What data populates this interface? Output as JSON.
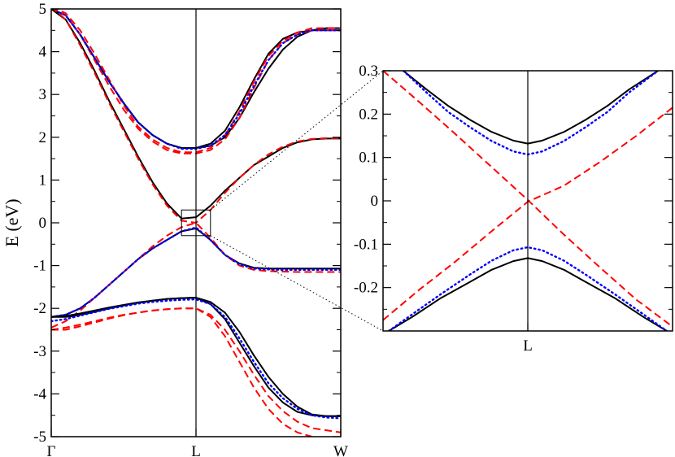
{
  "chart_data": [
    {
      "type": "line",
      "ylabel": "E (eV)",
      "ylim": [
        -5,
        5
      ],
      "xlim": [
        0,
        1
      ],
      "x_ticks": [
        {
          "x": 0,
          "label": "Γ"
        },
        {
          "x": 0.5,
          "label": "L"
        },
        {
          "x": 1,
          "label": "W"
        }
      ],
      "y_ticks": [
        5,
        4,
        3,
        2,
        1,
        0,
        -1,
        -2,
        -3,
        -4,
        -5
      ],
      "y_tick_labels": [
        "5",
        "4",
        "3",
        "2",
        "1",
        "0",
        "-1",
        "-2",
        "-3",
        "-4",
        "-5"
      ],
      "vline_x": 0.5,
      "inset_box": {
        "xmin": 0.45,
        "xmax": 0.55,
        "ymin": -0.3,
        "ymax": 0.3
      },
      "series": [
        {
          "color": "#000000",
          "style": "solid",
          "x": [
            0,
            0.05,
            0.1,
            0.15,
            0.2,
            0.25,
            0.3,
            0.35,
            0.4,
            0.45,
            0.5,
            0.55,
            0.6,
            0.65,
            0.7,
            0.75,
            0.8,
            0.85,
            0.9,
            0.95,
            1
          ],
          "y": [
            5,
            4.85,
            4.4,
            3.85,
            3.3,
            2.8,
            2.35,
            2.05,
            1.85,
            1.75,
            1.75,
            1.8,
            2,
            2.45,
            3.05,
            3.6,
            4.05,
            4.35,
            4.5,
            4.55,
            4.55
          ]
        },
        {
          "color": "#000000",
          "style": "solid",
          "x": [
            0,
            0.05,
            0.1,
            0.15,
            0.2,
            0.25,
            0.3,
            0.35,
            0.4,
            0.45,
            0.5,
            0.55,
            0.6,
            0.65,
            0.7,
            0.75,
            0.8,
            0.85,
            0.9,
            0.95,
            1
          ],
          "y": [
            5,
            4.85,
            4.4,
            3.85,
            3.3,
            2.8,
            2.35,
            2.05,
            1.85,
            1.75,
            1.75,
            1.85,
            2.15,
            2.7,
            3.35,
            3.95,
            4.3,
            4.45,
            4.5,
            4.5,
            4.5
          ]
        },
        {
          "color": "#ff0000",
          "style": "dashed",
          "x": [
            0,
            0.05,
            0.1,
            0.15,
            0.2,
            0.25,
            0.3,
            0.35,
            0.4,
            0.45,
            0.5,
            0.55,
            0.6,
            0.65,
            0.7,
            0.75,
            0.8,
            0.85,
            0.9,
            0.95,
            1
          ],
          "y": [
            5.05,
            4.9,
            4.5,
            3.95,
            3.35,
            2.75,
            2.25,
            1.95,
            1.75,
            1.65,
            1.65,
            1.75,
            2.05,
            2.6,
            3.3,
            3.9,
            4.25,
            4.45,
            4.55,
            4.55,
            4.55
          ]
        },
        {
          "color": "#ff0000",
          "style": "dashed",
          "x": [
            0,
            0.05,
            0.1,
            0.15,
            0.2,
            0.25,
            0.3,
            0.35,
            0.4,
            0.45,
            0.5,
            0.55,
            0.6,
            0.65,
            0.7,
            0.75,
            0.8,
            0.85,
            0.9,
            0.95,
            1
          ],
          "y": [
            5.05,
            4.85,
            4.4,
            3.8,
            3.2,
            2.65,
            2.2,
            1.9,
            1.7,
            1.62,
            1.62,
            1.7,
            1.95,
            2.45,
            3.15,
            3.8,
            4.2,
            4.4,
            4.5,
            4.5,
            4.5
          ]
        },
        {
          "color": "#0000ff",
          "style": "dotted",
          "x": [
            0,
            0.05,
            0.1,
            0.15,
            0.2,
            0.25,
            0.3,
            0.35,
            0.4,
            0.45,
            0.5,
            0.55,
            0.6,
            0.65,
            0.7,
            0.75,
            0.8,
            0.85,
            0.9,
            0.95,
            1
          ],
          "y": [
            5,
            4.85,
            4.4,
            3.85,
            3.3,
            2.8,
            2.35,
            2.05,
            1.85,
            1.73,
            1.73,
            1.8,
            2.05,
            2.55,
            3.2,
            3.8,
            4.2,
            4.4,
            4.5,
            4.5,
            4.5
          ]
        },
        {
          "color": "#000000",
          "style": "solid",
          "x": [
            0,
            0.05,
            0.1,
            0.15,
            0.2,
            0.25,
            0.3,
            0.35,
            0.4,
            0.45,
            0.5,
            0.55,
            0.6,
            0.65,
            0.7,
            0.75,
            0.8,
            0.85,
            0.9,
            0.95,
            1
          ],
          "y": [
            -2.2,
            -2.15,
            -2,
            -1.75,
            -1.45,
            -1.15,
            -0.85,
            -0.6,
            -0.4,
            -0.2,
            -0.13,
            -0.4,
            -0.75,
            -0.95,
            -1.05,
            -1.07,
            -1.07,
            -1.07,
            -1.07,
            -1.07,
            -1.07
          ]
        },
        {
          "color": "#000000",
          "style": "solid",
          "x": [
            0,
            0.05,
            0.1,
            0.15,
            0.2,
            0.25,
            0.3,
            0.35,
            0.4,
            0.45,
            0.5,
            0.55,
            0.6,
            0.65,
            0.7,
            0.75,
            0.8,
            0.85,
            0.9,
            0.95,
            1
          ],
          "y": [
            5,
            4.75,
            4.2,
            3.55,
            2.85,
            2.2,
            1.55,
            0.95,
            0.45,
            0.1,
            0.13,
            0.4,
            0.75,
            1.05,
            1.35,
            1.55,
            1.75,
            1.88,
            1.95,
            1.97,
            1.97
          ]
        },
        {
          "color": "#ff0000",
          "style": "dashed",
          "x": [
            0,
            0.05,
            0.1,
            0.15,
            0.2,
            0.25,
            0.3,
            0.35,
            0.4,
            0.45,
            0.5,
            0.55,
            0.6,
            0.65,
            0.7,
            0.75,
            0.8,
            0.85,
            0.9,
            0.95,
            1
          ],
          "y": [
            -2.45,
            -2.3,
            -2.05,
            -1.75,
            -1.45,
            -1.15,
            -0.85,
            -0.55,
            -0.3,
            -0.1,
            0,
            -0.35,
            -0.75,
            -1,
            -1.1,
            -1.13,
            -1.14,
            -1.15,
            -1.15,
            -1.15,
            -1.15
          ]
        },
        {
          "color": "#ff0000",
          "style": "dashed",
          "x": [
            0,
            0.05,
            0.1,
            0.15,
            0.2,
            0.25,
            0.3,
            0.35,
            0.4,
            0.45,
            0.5,
            0.55,
            0.6,
            0.65,
            0.7,
            0.75,
            0.8,
            0.85,
            0.9,
            0.95,
            1
          ],
          "y": [
            5.05,
            4.75,
            4.15,
            3.5,
            2.8,
            2.15,
            1.5,
            0.9,
            0.4,
            0.05,
            0,
            0.3,
            0.7,
            1.05,
            1.35,
            1.6,
            1.78,
            1.9,
            1.96,
            1.98,
            1.98
          ]
        },
        {
          "color": "#0000ff",
          "style": "dotted",
          "x": [
            0,
            0.05,
            0.1,
            0.15,
            0.2,
            0.25,
            0.3,
            0.35,
            0.4,
            0.45,
            0.5,
            0.55,
            0.6,
            0.65,
            0.7,
            0.75,
            0.8,
            0.85,
            0.9,
            0.95,
            1
          ],
          "y": [
            -2.2,
            -2.15,
            -2,
            -1.75,
            -1.45,
            -1.15,
            -0.85,
            -0.6,
            -0.4,
            -0.2,
            -0.11,
            -0.4,
            -0.75,
            -0.97,
            -1.07,
            -1.09,
            -1.1,
            -1.1,
            -1.1,
            -1.1,
            -1.1
          ]
        },
        {
          "color": "#000000",
          "style": "solid",
          "x": [
            0,
            0.05,
            0.1,
            0.15,
            0.2,
            0.25,
            0.3,
            0.35,
            0.4,
            0.45,
            0.5,
            0.55,
            0.6,
            0.65,
            0.7,
            0.75,
            0.8,
            0.85,
            0.9,
            0.95,
            1
          ],
          "y": [
            -2.2,
            -2.18,
            -2.12,
            -2.05,
            -1.98,
            -1.92,
            -1.86,
            -1.82,
            -1.78,
            -1.76,
            -1.75,
            -1.85,
            -2.1,
            -2.55,
            -3.1,
            -3.6,
            -4,
            -4.3,
            -4.48,
            -4.52,
            -4.52
          ]
        },
        {
          "color": "#000000",
          "style": "solid",
          "x": [
            0,
            0.05,
            0.1,
            0.15,
            0.2,
            0.25,
            0.3,
            0.35,
            0.4,
            0.45,
            0.5,
            0.55,
            0.6,
            0.65,
            0.7,
            0.75,
            0.8,
            0.85,
            0.9,
            0.95,
            1
          ],
          "y": [
            -2.2,
            -2.2,
            -2.15,
            -2.08,
            -2,
            -1.93,
            -1.87,
            -1.82,
            -1.78,
            -1.76,
            -1.75,
            -1.9,
            -2.25,
            -2.8,
            -3.35,
            -3.85,
            -4.2,
            -4.42,
            -4.5,
            -4.52,
            -4.52
          ]
        },
        {
          "color": "#0000ff",
          "style": "dotted",
          "x": [
            0,
            0.05,
            0.1,
            0.15,
            0.2,
            0.25,
            0.3,
            0.35,
            0.4,
            0.45,
            0.5,
            0.55,
            0.6,
            0.65,
            0.7,
            0.75,
            0.8,
            0.85,
            0.9,
            0.95,
            1
          ],
          "y": [
            -2.3,
            -2.25,
            -2.17,
            -2.09,
            -2.01,
            -1.95,
            -1.89,
            -1.85,
            -1.82,
            -1.8,
            -1.79,
            -1.9,
            -2.2,
            -2.7,
            -3.25,
            -3.75,
            -4.1,
            -4.35,
            -4.5,
            -4.55,
            -4.57
          ]
        },
        {
          "color": "#ff0000",
          "style": "dashed",
          "x": [
            0,
            0.05,
            0.1,
            0.15,
            0.2,
            0.25,
            0.3,
            0.35,
            0.4,
            0.45,
            0.5,
            0.55,
            0.6,
            0.65,
            0.7,
            0.75,
            0.8,
            0.85,
            0.9,
            0.95,
            1
          ],
          "y": [
            -2.5,
            -2.45,
            -2.38,
            -2.3,
            -2.22,
            -2.15,
            -2.1,
            -2.05,
            -2.02,
            -2,
            -2,
            -2.15,
            -2.5,
            -3,
            -3.55,
            -4.05,
            -4.4,
            -4.65,
            -4.8,
            -4.85,
            -4.9
          ]
        },
        {
          "color": "#ff0000",
          "style": "dashed",
          "x": [
            0,
            0.05,
            0.1,
            0.15,
            0.2,
            0.25,
            0.3,
            0.35,
            0.4,
            0.45,
            0.5,
            0.55,
            0.6,
            0.65,
            0.7,
            0.75,
            0.8,
            0.85,
            0.9,
            0.95,
            1
          ],
          "y": [
            -2.5,
            -2.5,
            -2.42,
            -2.33,
            -2.24,
            -2.16,
            -2.1,
            -2.05,
            -2.02,
            -2,
            -2,
            -2.2,
            -2.65,
            -3.25,
            -3.85,
            -4.35,
            -4.7,
            -4.9,
            -5,
            -5.05,
            -5.1
          ]
        }
      ]
    },
    {
      "type": "line",
      "ylim": [
        -0.3,
        0.3
      ],
      "xlim": [
        -1,
        1
      ],
      "x_ticks": [
        {
          "x": 0,
          "label": "L"
        }
      ],
      "y_ticks": [
        0.3,
        0.2,
        0.1,
        0,
        -0.1,
        -0.2
      ],
      "y_tick_labels": [
        "0.3",
        "0.2",
        "0.1",
        "0",
        "-0.1",
        "-0.2"
      ],
      "vline_x": 0,
      "series": [
        {
          "color": "#000000",
          "style": "solid",
          "x": [
            -0.86,
            -0.7,
            -0.55,
            -0.4,
            -0.25,
            -0.1,
            0,
            0.1,
            0.25,
            0.4,
            0.55,
            0.7,
            0.9
          ],
          "y": [
            0.3,
            0.257,
            0.219,
            0.187,
            0.159,
            0.139,
            0.132,
            0.139,
            0.159,
            0.187,
            0.219,
            0.257,
            0.3
          ]
        },
        {
          "color": "#000000",
          "style": "solid",
          "x": [
            -0.96,
            -0.8,
            -0.6,
            -0.4,
            -0.25,
            -0.1,
            0,
            0.1,
            0.25,
            0.4,
            0.6,
            0.8,
            0.96
          ],
          "y": [
            -0.3,
            -0.268,
            -0.224,
            -0.187,
            -0.159,
            -0.139,
            -0.132,
            -0.139,
            -0.159,
            -0.187,
            -0.224,
            -0.268,
            -0.3
          ]
        },
        {
          "color": "#0000ff",
          "style": "dotted",
          "x": [
            -0.86,
            -0.7,
            -0.55,
            -0.4,
            -0.25,
            -0.1,
            0,
            0.1,
            0.25,
            0.4,
            0.55,
            0.7,
            0.9
          ],
          "y": [
            0.3,
            0.25,
            0.205,
            0.17,
            0.138,
            0.114,
            0.107,
            0.114,
            0.138,
            0.17,
            0.205,
            0.25,
            0.3
          ]
        },
        {
          "color": "#0000ff",
          "style": "dotted",
          "x": [
            -0.96,
            -0.8,
            -0.6,
            -0.4,
            -0.25,
            -0.1,
            0,
            0.1,
            0.25,
            0.4,
            0.6,
            0.8,
            0.96
          ],
          "y": [
            -0.3,
            -0.262,
            -0.215,
            -0.17,
            -0.138,
            -0.114,
            -0.107,
            -0.114,
            -0.138,
            -0.17,
            -0.215,
            -0.262,
            -0.3
          ]
        },
        {
          "color": "#ff0000",
          "style": "dashed",
          "x": [
            -1,
            -0.75,
            -0.5,
            -0.25,
            0,
            0.25,
            0.5,
            0.75,
            1
          ],
          "y": [
            0.3,
            0.228,
            0.154,
            0.078,
            0.002,
            -0.078,
            -0.154,
            -0.228,
            -0.29
          ]
        },
        {
          "color": "#ff0000",
          "style": "dashed",
          "x": [
            -1,
            -0.75,
            -0.5,
            -0.25,
            0,
            0.25,
            0.5,
            0.75,
            1
          ],
          "y": [
            -0.275,
            -0.205,
            -0.14,
            -0.07,
            -0.002,
            0.035,
            0.09,
            0.15,
            0.215
          ]
        }
      ]
    }
  ]
}
